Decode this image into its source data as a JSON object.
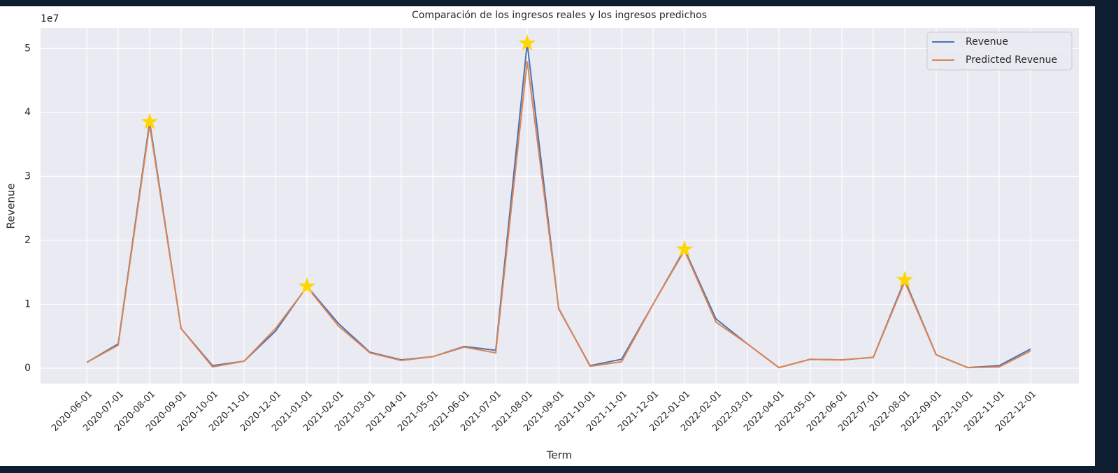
{
  "chart_data": {
    "type": "line",
    "title": "Comparación de los ingresos reales y los ingresos predichos",
    "x_label": "Term",
    "y_label": "Revenue",
    "y_offset_label": "1e7",
    "categories": [
      "2020-06-01",
      "2020-07-01",
      "2020-08-01",
      "2020-09-01",
      "2020-10-01",
      "2020-11-01",
      "2020-12-01",
      "2021-01-01",
      "2021-02-01",
      "2021-03-01",
      "2021-04-01",
      "2021-05-01",
      "2021-06-01",
      "2021-07-01",
      "2021-08-01",
      "2021-09-01",
      "2021-10-01",
      "2021-11-01",
      "2021-12-01",
      "2022-01-01",
      "2022-02-01",
      "2022-03-01",
      "2022-04-01",
      "2022-05-01",
      "2022-06-01",
      "2022-07-01",
      "2022-08-01",
      "2022-09-01",
      "2022-10-01",
      "2022-11-01",
      "2022-12-01"
    ],
    "series": [
      {
        "name": "Revenue",
        "color": "#4c72b0",
        "values": [
          0.09,
          0.38,
          3.85,
          0.62,
          0.04,
          0.11,
          0.58,
          1.28,
          0.7,
          0.25,
          0.13,
          0.18,
          0.34,
          0.28,
          5.08,
          0.93,
          0.04,
          0.14,
          1.0,
          1.86,
          0.77,
          0.38,
          0.01,
          0.14,
          0.13,
          0.17,
          1.38,
          0.21,
          0.01,
          0.04,
          0.3
        ]
      },
      {
        "name": "Predicted Revenue",
        "color": "#dd8452",
        "values": [
          0.09,
          0.36,
          3.8,
          0.62,
          0.02,
          0.11,
          0.62,
          1.27,
          0.66,
          0.24,
          0.12,
          0.18,
          0.33,
          0.24,
          4.8,
          0.94,
          0.03,
          0.1,
          1.0,
          1.84,
          0.72,
          0.38,
          0.01,
          0.14,
          0.13,
          0.17,
          1.35,
          0.21,
          0.01,
          0.02,
          0.27
        ]
      }
    ],
    "markers": {
      "series": 0,
      "indices": [
        2,
        7,
        14,
        19,
        26
      ],
      "color": "#ffd700",
      "shape": "star"
    },
    "ylim": [
      -0.24,
      5.32
    ],
    "yticks": [
      0,
      1,
      2,
      3,
      4,
      5
    ],
    "grid": true,
    "legend": "upper right"
  }
}
